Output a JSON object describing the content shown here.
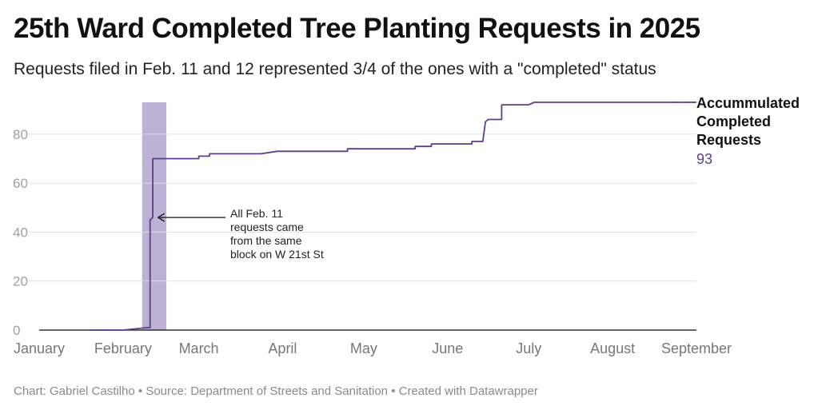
{
  "title": "25th Ward Completed Tree Planting Requests in 2025",
  "subtitle": "Requests filed in Feb. 11 and 12 represented 3/4 of the ones with a \"completed\" status",
  "footer": {
    "byline": "Chart: Gabriel Castilho",
    "source": "Source: Department of Streets and Sanitation",
    "tool": "Created with Datawrapper",
    "separator": " • "
  },
  "chart_data": {
    "type": "line",
    "title": "25th Ward Completed Tree Planting Requests in 2025",
    "ylim": [
      0,
      93
    ],
    "y_ticks": [
      0,
      20,
      40,
      60,
      80
    ],
    "grid": true,
    "x_ticks": [
      "January",
      "February",
      "March",
      "April",
      "May",
      "June",
      "July",
      "August",
      "September"
    ],
    "series": [
      {
        "name": "Accummulated Completed Requests",
        "color": "#5b3f8c",
        "points": [
          [
            "2025-02-01",
            0
          ],
          [
            "2025-02-10",
            1
          ],
          [
            "2025-02-11",
            1
          ],
          [
            "2025-02-11",
            45
          ],
          [
            "2025-02-12",
            46
          ],
          [
            "2025-02-12",
            70
          ],
          [
            "2025-03-01",
            70
          ],
          [
            "2025-03-01",
            71
          ],
          [
            "2025-03-05",
            71
          ],
          [
            "2025-03-05",
            72
          ],
          [
            "2025-03-24",
            72
          ],
          [
            "2025-03-30",
            73
          ],
          [
            "2025-04-25",
            73
          ],
          [
            "2025-04-25",
            74
          ],
          [
            "2025-05-20",
            74
          ],
          [
            "2025-05-20",
            75
          ],
          [
            "2025-05-26",
            75
          ],
          [
            "2025-05-26",
            76
          ],
          [
            "2025-06-10",
            76
          ],
          [
            "2025-06-10",
            77
          ],
          [
            "2025-06-14",
            77
          ],
          [
            "2025-06-15",
            85
          ],
          [
            "2025-06-16",
            86
          ],
          [
            "2025-06-21",
            86
          ],
          [
            "2025-06-21",
            92
          ],
          [
            "2025-07-01",
            92
          ],
          [
            "2025-07-03",
            93
          ],
          [
            "2025-09-01",
            93
          ]
        ]
      }
    ],
    "highlight_band": {
      "from": "2025-02-11",
      "to": "2025-02-12",
      "color": "#b3a3cf"
    },
    "annotation": {
      "lines": [
        "All Feb. 11",
        "requests came",
        "from the same",
        "block on W 21st St"
      ],
      "points_to": [
        "2025-02-11",
        45
      ]
    },
    "end_label": {
      "lines": [
        "Accummulated",
        "Completed",
        "Requests"
      ],
      "value": "93"
    }
  }
}
